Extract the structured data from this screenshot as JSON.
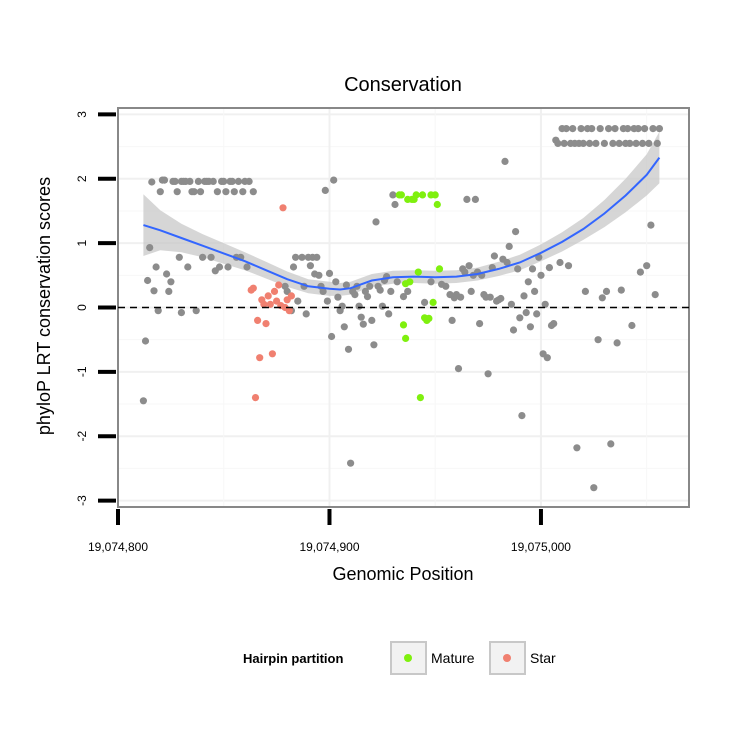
{
  "chart_data": {
    "type": "scatter",
    "title": "Conservation",
    "xlabel": "Genomic Position",
    "ylabel": "phyloP LRT conservation scores",
    "xlim": [
      19074800,
      19075070
    ],
    "ylim": [
      -3.1,
      3.1
    ],
    "x_ticks": [
      19074800,
      19074900,
      19075000
    ],
    "x_tick_labels": [
      "19,074,800",
      "19,074,900",
      "19,075,000"
    ],
    "y_ticks": [
      -3,
      -2,
      -1,
      0,
      1,
      2,
      3
    ],
    "y_tick_labels": [
      "-3",
      "-2",
      "-1",
      "0",
      "1",
      "2",
      "3"
    ],
    "grid": true,
    "reference_line": {
      "y": 0,
      "style": "dashed"
    },
    "legend": {
      "title": "Hairpin partition",
      "position": "bottom",
      "entries": [
        {
          "label": "Mature",
          "color": "#7ff00e"
        },
        {
          "label": "Star",
          "color": "#f08070"
        }
      ]
    },
    "colors": {
      "background": "#ffffff",
      "other": "#8c8c8c",
      "mature": "#7ff00e",
      "star": "#f08070",
      "smooth": "#3366ff",
      "ribbon": "#c8c8c8",
      "grid": "#f0f0f0",
      "border": "#888888"
    },
    "series": [
      {
        "group": "other",
        "points": [
          [
            19074812,
            -1.45
          ],
          [
            19074813,
            -0.52
          ],
          [
            19074814,
            0.42
          ],
          [
            19074815,
            0.93
          ],
          [
            19074816,
            1.95
          ],
          [
            19074817,
            0.26
          ],
          [
            19074818,
            0.63
          ],
          [
            19074819,
            -0.05
          ],
          [
            19074820,
            1.8
          ],
          [
            19074821,
            1.98
          ],
          [
            19074822,
            1.98
          ],
          [
            19074823,
            0.52
          ],
          [
            19074824,
            0.25
          ],
          [
            19074825,
            0.4
          ],
          [
            19074826,
            1.96
          ],
          [
            19074827,
            1.96
          ],
          [
            19074828,
            1.8
          ],
          [
            19074829,
            0.78
          ],
          [
            19074830,
            1.96
          ],
          [
            19074830,
            -0.08
          ],
          [
            19074831,
            1.96
          ],
          [
            19074832,
            1.96
          ],
          [
            19074833,
            0.63
          ],
          [
            19074834,
            1.96
          ],
          [
            19074835,
            1.8
          ],
          [
            19074836,
            1.8
          ],
          [
            19074837,
            -0.05
          ],
          [
            19074838,
            1.96
          ],
          [
            19074839,
            1.8
          ],
          [
            19074840,
            0.78
          ],
          [
            19074841,
            1.96
          ],
          [
            19074842,
            1.96
          ],
          [
            19074843,
            1.96
          ],
          [
            19074844,
            0.78
          ],
          [
            19074845,
            1.96
          ],
          [
            19074846,
            0.57
          ],
          [
            19074847,
            1.8
          ],
          [
            19074848,
            0.63
          ],
          [
            19074849,
            1.96
          ],
          [
            19074850,
            1.96
          ],
          [
            19074851,
            1.8
          ],
          [
            19074852,
            0.63
          ],
          [
            19074853,
            1.96
          ],
          [
            19074854,
            1.96
          ],
          [
            19074855,
            1.8
          ],
          [
            19074856,
            0.78
          ],
          [
            19074857,
            1.96
          ],
          [
            19074858,
            0.78
          ],
          [
            19074859,
            1.8
          ],
          [
            19074860,
            1.96
          ],
          [
            19074861,
            0.63
          ],
          [
            19074862,
            1.96
          ],
          [
            19074864,
            1.8
          ],
          [
            19074879,
            0.33
          ],
          [
            19074880,
            0.25
          ],
          [
            19074882,
            -0.05
          ],
          [
            19074883,
            0.63
          ],
          [
            19074884,
            0.78
          ],
          [
            19074885,
            0.1
          ],
          [
            19074887,
            0.78
          ],
          [
            19074888,
            0.33
          ],
          [
            19074889,
            -0.1
          ],
          [
            19074890,
            0.78
          ],
          [
            19074891,
            0.65
          ],
          [
            19074892,
            0.78
          ],
          [
            19074893,
            0.52
          ],
          [
            19074894,
            0.78
          ],
          [
            19074895,
            0.5
          ],
          [
            19074896,
            0.33
          ],
          [
            19074897,
            0.25
          ],
          [
            19074898,
            1.82
          ],
          [
            19074899,
            0.1
          ],
          [
            19074900,
            0.53
          ],
          [
            19074901,
            -0.45
          ],
          [
            19074902,
            1.98
          ],
          [
            19074903,
            0.4
          ],
          [
            19074904,
            0.16
          ],
          [
            19074905,
            -0.05
          ],
          [
            19074906,
            0.02
          ],
          [
            19074907,
            -0.3
          ],
          [
            19074908,
            0.35
          ],
          [
            19074909,
            -0.65
          ],
          [
            19074910,
            -2.42
          ],
          [
            19074911,
            0.25
          ],
          [
            19074912,
            0.2
          ],
          [
            19074913,
            0.33
          ],
          [
            19074914,
            0.02
          ],
          [
            19074915,
            -0.15
          ],
          [
            19074916,
            -0.26
          ],
          [
            19074917,
            0.25
          ],
          [
            19074918,
            0.17
          ],
          [
            19074919,
            0.33
          ],
          [
            19074920,
            -0.2
          ],
          [
            19074921,
            -0.58
          ],
          [
            19074922,
            1.33
          ],
          [
            19074923,
            0.33
          ],
          [
            19074924,
            0.27
          ],
          [
            19074925,
            0.02
          ],
          [
            19074926,
            0.42
          ],
          [
            19074927,
            0.48
          ],
          [
            19074928,
            -0.1
          ],
          [
            19074929,
            0.25
          ],
          [
            19074930,
            1.75
          ],
          [
            19074931,
            1.6
          ],
          [
            19074932,
            0.4
          ],
          [
            19074935,
            0.17
          ],
          [
            19074937,
            0.25
          ],
          [
            19074945,
            0.08
          ],
          [
            19074948,
            0.4
          ],
          [
            19074953,
            0.36
          ],
          [
            19074955,
            0.33
          ],
          [
            19074957,
            0.2
          ],
          [
            19074958,
            -0.2
          ],
          [
            19074959,
            0.15
          ],
          [
            19074960,
            0.2
          ],
          [
            19074961,
            -0.95
          ],
          [
            19074962,
            0.16
          ],
          [
            19074963,
            0.6
          ],
          [
            19074964,
            0.55
          ],
          [
            19074965,
            1.68
          ],
          [
            19074966,
            0.65
          ],
          [
            19074967,
            0.25
          ],
          [
            19074968,
            0.5
          ],
          [
            19074969,
            1.68
          ],
          [
            19074970,
            0.55
          ],
          [
            19074971,
            -0.25
          ],
          [
            19074972,
            0.5
          ],
          [
            19074973,
            0.2
          ],
          [
            19074974,
            0.16
          ],
          [
            19074975,
            -1.03
          ],
          [
            19074976,
            0.16
          ],
          [
            19074977,
            0.62
          ],
          [
            19074978,
            0.8
          ],
          [
            19074979,
            0.1
          ],
          [
            19074980,
            0.12
          ],
          [
            19074981,
            0.14
          ],
          [
            19074982,
            0.75
          ],
          [
            19074983,
            2.27
          ],
          [
            19074984,
            0.7
          ],
          [
            19074985,
            0.95
          ],
          [
            19074986,
            0.05
          ],
          [
            19074987,
            -0.35
          ],
          [
            19074988,
            1.18
          ],
          [
            19074989,
            0.6
          ],
          [
            19074990,
            -0.16
          ],
          [
            19074991,
            -1.68
          ],
          [
            19074992,
            0.18
          ],
          [
            19074993,
            -0.08
          ],
          [
            19074994,
            0.4
          ],
          [
            19074995,
            -0.3
          ],
          [
            19074996,
            0.6
          ],
          [
            19074997,
            0.25
          ],
          [
            19074998,
            -0.1
          ],
          [
            19074999,
            0.78
          ],
          [
            19075000,
            0.5
          ],
          [
            19075001,
            -0.72
          ],
          [
            19075002,
            0.05
          ],
          [
            19075003,
            -0.78
          ],
          [
            19075004,
            0.62
          ],
          [
            19075005,
            -0.28
          ],
          [
            19075006,
            -0.25
          ],
          [
            19075007,
            2.6
          ],
          [
            19075008,
            2.55
          ],
          [
            19075009,
            0.7
          ],
          [
            19075010,
            2.78
          ],
          [
            19075011,
            2.55
          ],
          [
            19075012,
            2.78
          ],
          [
            19075013,
            0.65
          ],
          [
            19075014,
            2.55
          ],
          [
            19075015,
            2.78
          ],
          [
            19075016,
            2.55
          ],
          [
            19075017,
            -2.18
          ],
          [
            19075018,
            2.55
          ],
          [
            19075019,
            2.78
          ],
          [
            19075020,
            2.55
          ],
          [
            19075021,
            0.25
          ],
          [
            19075022,
            2.78
          ],
          [
            19075023,
            2.55
          ],
          [
            19075024,
            2.78
          ],
          [
            19075025,
            -2.8
          ],
          [
            19075026,
            2.55
          ],
          [
            19075027,
            -0.5
          ],
          [
            19075028,
            2.78
          ],
          [
            19075029,
            0.15
          ],
          [
            19075030,
            2.55
          ],
          [
            19075031,
            0.25
          ],
          [
            19075032,
            2.78
          ],
          [
            19075033,
            -2.12
          ],
          [
            19075034,
            2.55
          ],
          [
            19075035,
            2.78
          ],
          [
            19075036,
            -0.55
          ],
          [
            19075037,
            2.55
          ],
          [
            19075038,
            0.27
          ],
          [
            19075039,
            2.78
          ],
          [
            19075040,
            2.55
          ],
          [
            19075041,
            2.78
          ],
          [
            19075042,
            2.55
          ],
          [
            19075043,
            -0.28
          ],
          [
            19075044,
            2.78
          ],
          [
            19075045,
            2.55
          ],
          [
            19075046,
            2.78
          ],
          [
            19075047,
            0.55
          ],
          [
            19075048,
            2.55
          ],
          [
            19075049,
            2.78
          ],
          [
            19075050,
            0.65
          ],
          [
            19075051,
            2.55
          ],
          [
            19075052,
            1.28
          ],
          [
            19075053,
            2.78
          ],
          [
            19075054,
            0.2
          ],
          [
            19075055,
            2.55
          ],
          [
            19075056,
            2.78
          ]
        ]
      },
      {
        "group": "mature",
        "points": [
          [
            19074933,
            1.75
          ],
          [
            19074934,
            1.75
          ],
          [
            19074935,
            -0.27
          ],
          [
            19074936,
            0.37
          ],
          [
            19074936,
            -0.48
          ],
          [
            19074937,
            1.68
          ],
          [
            19074938,
            0.4
          ],
          [
            19074939,
            1.68
          ],
          [
            19074940,
            1.68
          ],
          [
            19074941,
            1.75
          ],
          [
            19074942,
            0.55
          ],
          [
            19074943,
            -1.4
          ],
          [
            19074944,
            1.75
          ],
          [
            19074945,
            -0.16
          ],
          [
            19074946,
            -0.2
          ],
          [
            19074947,
            -0.17
          ],
          [
            19074948,
            1.75
          ],
          [
            19074949,
            0.08
          ],
          [
            19074950,
            1.75
          ],
          [
            19074951,
            1.6
          ],
          [
            19074952,
            0.6
          ]
        ]
      },
      {
        "group": "star",
        "points": [
          [
            19074863,
            0.27
          ],
          [
            19074864,
            0.3
          ],
          [
            19074865,
            -1.4
          ],
          [
            19074866,
            -0.2
          ],
          [
            19074867,
            -0.78
          ],
          [
            19074868,
            0.12
          ],
          [
            19074869,
            0.05
          ],
          [
            19074870,
            -0.25
          ],
          [
            19074871,
            0.18
          ],
          [
            19074872,
            0.05
          ],
          [
            19074873,
            -0.72
          ],
          [
            19074874,
            0.25
          ],
          [
            19074875,
            0.1
          ],
          [
            19074876,
            0.35
          ],
          [
            19074877,
            0.03
          ],
          [
            19074878,
            1.55
          ],
          [
            19074879,
            0.0
          ],
          [
            19074880,
            0.12
          ],
          [
            19074881,
            -0.05
          ],
          [
            19074882,
            0.18
          ]
        ]
      }
    ],
    "smooth": {
      "x": [
        19074812,
        19074820,
        19074830,
        19074840,
        19074850,
        19074860,
        19074870,
        19074880,
        19074890,
        19074900,
        19074905,
        19074910,
        19074915,
        19074920,
        19074930,
        19074940,
        19074950,
        19074960,
        19074970,
        19074980,
        19074990,
        19075000,
        19075010,
        19075020,
        19075030,
        19075040,
        19075050,
        19075056
      ],
      "y": [
        1.28,
        1.2,
        1.08,
        0.96,
        0.84,
        0.72,
        0.58,
        0.44,
        0.33,
        0.29,
        0.28,
        0.3,
        0.36,
        0.42,
        0.47,
        0.48,
        0.47,
        0.48,
        0.52,
        0.6,
        0.7,
        0.85,
        1.02,
        1.22,
        1.46,
        1.74,
        2.06,
        2.33
      ],
      "lower": [
        0.8,
        0.89,
        0.86,
        0.78,
        0.68,
        0.58,
        0.45,
        0.32,
        0.22,
        0.18,
        0.18,
        0.2,
        0.26,
        0.32,
        0.37,
        0.38,
        0.37,
        0.38,
        0.42,
        0.49,
        0.58,
        0.72,
        0.87,
        1.05,
        1.25,
        1.48,
        1.74,
        1.93
      ],
      "upper": [
        1.76,
        1.51,
        1.3,
        1.14,
        1.0,
        0.86,
        0.71,
        0.56,
        0.44,
        0.4,
        0.38,
        0.4,
        0.46,
        0.52,
        0.57,
        0.58,
        0.57,
        0.58,
        0.62,
        0.71,
        0.82,
        0.98,
        1.17,
        1.39,
        1.67,
        2.0,
        2.38,
        2.73
      ]
    }
  }
}
